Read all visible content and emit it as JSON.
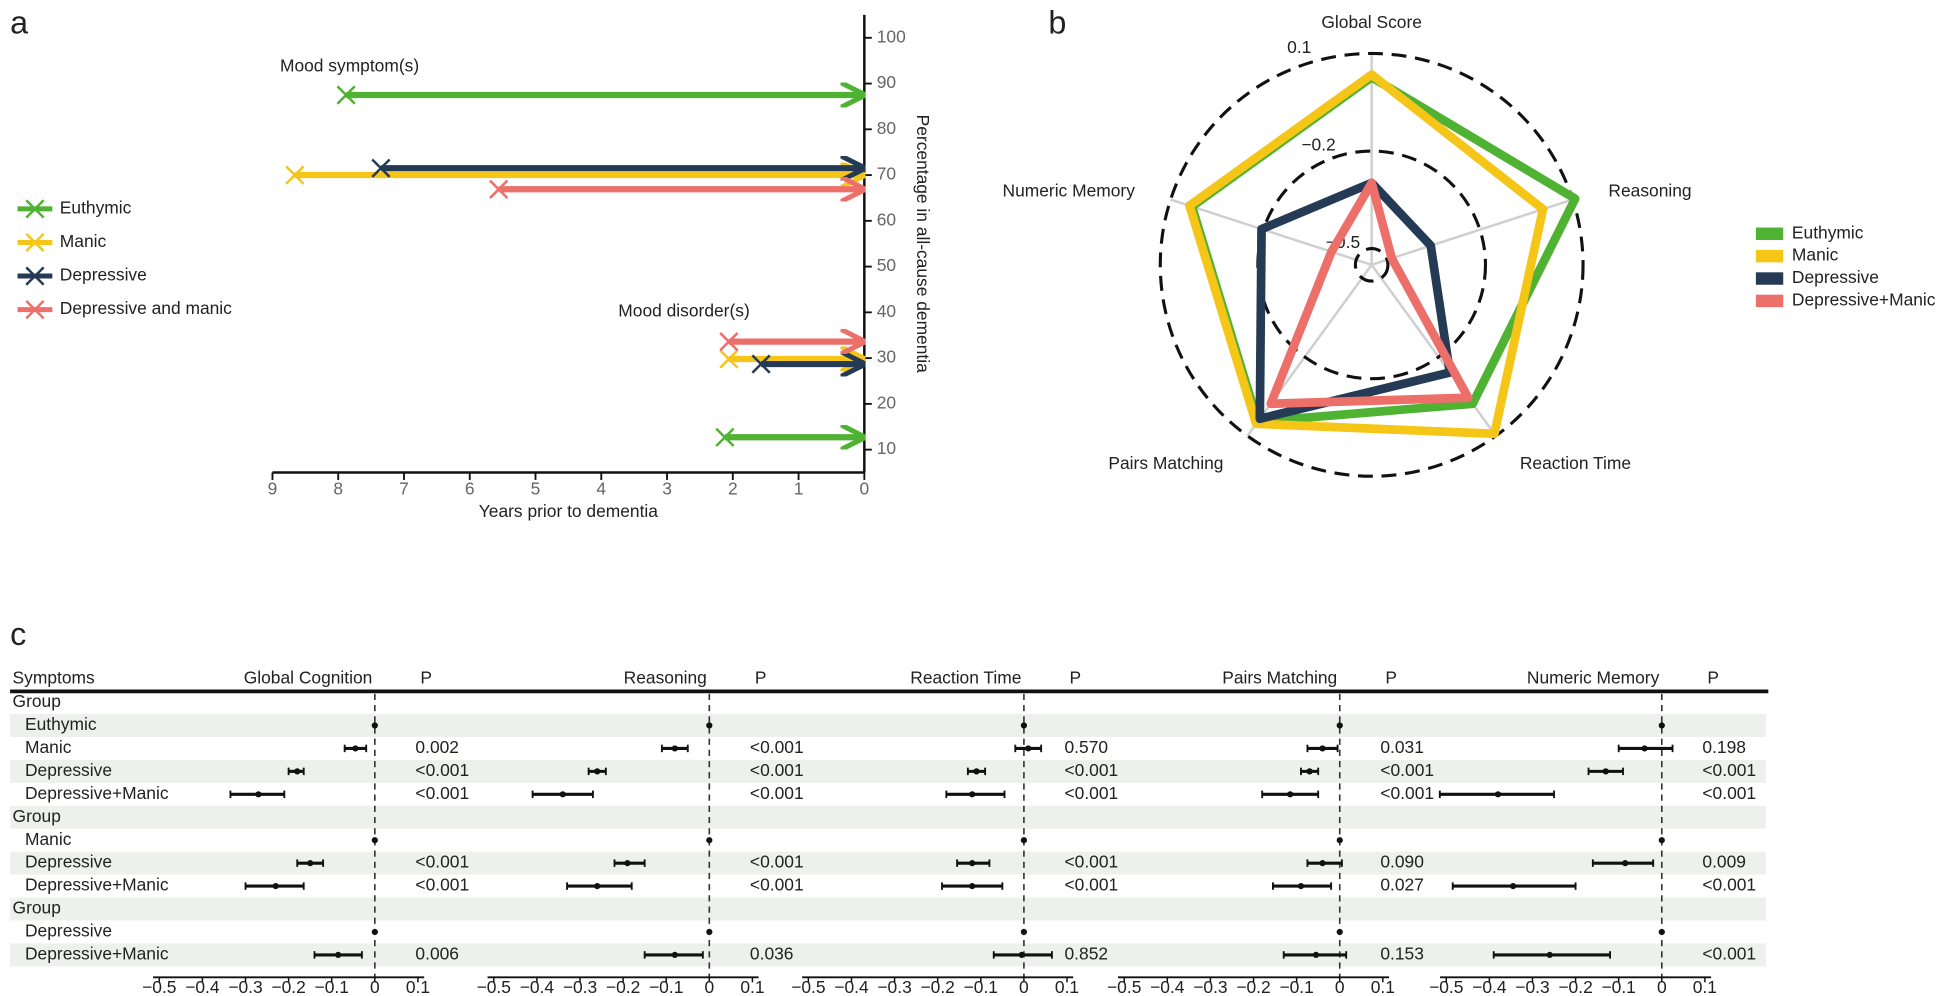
{
  "chart_data": [
    {
      "type": "range",
      "panel_label": "a",
      "annotations": [
        "Mood symptom(s)",
        "Mood disorder(s)"
      ],
      "xlabel": "Years prior to dementia",
      "ylabel": "Percentage in all-cause dementia",
      "xlim": [
        9,
        0
      ],
      "xticks": [
        9,
        8,
        7,
        6,
        5,
        4,
        3,
        2,
        1,
        0
      ],
      "ylim": [
        5,
        105
      ],
      "yticks": [
        10,
        20,
        30,
        40,
        50,
        60,
        70,
        80,
        90,
        100
      ],
      "series": [
        {
          "name": "Euthymic",
          "color": "#4fb232",
          "x": [
            7.88,
            2.12
          ],
          "values": [
            87.5,
            12.7
          ]
        },
        {
          "name": "Manic",
          "color": "#f5c518",
          "x": [
            8.66,
            2.06
          ],
          "values": [
            70,
            29.8
          ]
        },
        {
          "name": "Depressive",
          "color": "#253a54",
          "x": [
            7.35,
            1.57
          ],
          "values": [
            71.5,
            28.7
          ]
        },
        {
          "name": "Depressive and manic",
          "color": "#ec6f6a",
          "x": [
            5.56,
            2.06
          ],
          "values": [
            66.9,
            33.6
          ]
        }
      ]
    },
    {
      "type": "radar",
      "panel_label": "b",
      "categories": [
        "Global Score",
        "Reasoning",
        "Reaction Time",
        "Pairs Matching",
        "Numeric Memory"
      ],
      "rlim": [
        -0.55,
        0.1
      ],
      "rticks": [
        0.1,
        {
          "value": -0.2,
          "label": "−0.2"
        },
        {
          "value": -0.5,
          "label": "−0.5"
        }
      ],
      "series": [
        {
          "name": "Euthymic",
          "color": "#4fb232",
          "values": [
            0.027,
            0.108,
            -0.022,
            0.046,
            0.031
          ]
        },
        {
          "name": "Manic",
          "color": "#f5c518",
          "values": [
            0.035,
            0.004,
            0.092,
            0.054,
            0.039
          ]
        },
        {
          "name": "Depressive",
          "color": "#253a54",
          "values": [
            -0.298,
            -0.359,
            -0.141,
            0.035,
            -0.194
          ]
        },
        {
          "name": "Depressive+Manic",
          "color": "#ec6f6a",
          "values": [
            -0.298,
            -0.485,
            -0.045,
            -0.022,
            -0.42
          ]
        }
      ]
    },
    {
      "type": "forest",
      "panel_label": "c",
      "row_header": "Symptoms",
      "rows": [
        "Group",
        "Euthymic",
        "Manic",
        "Depressive",
        "Depressive+Manic",
        "Group",
        "Manic",
        "Depressive",
        "Depressive+Manic",
        "Group",
        "Depressive",
        "Depressive+Manic"
      ],
      "xlim": [
        -0.5,
        0.1
      ],
      "xticks": [
        {
          "value": -0.5,
          "label": "−0.5"
        },
        {
          "value": -0.4,
          "label": "−0.4"
        },
        {
          "value": -0.3,
          "label": "−0.3"
        },
        {
          "value": -0.2,
          "label": "−0.2"
        },
        {
          "value": -0.1,
          "label": "−0.1"
        },
        0,
        0.1
      ],
      "panels": [
        {
          "title": "Global Cognition",
          "p_title": "P",
          "estimates": [
            null,
            0,
            -0.045,
            -0.18,
            -0.27,
            null,
            0,
            -0.15,
            -0.23,
            null,
            0,
            -0.085
          ],
          "lower": [
            null,
            null,
            -0.07,
            -0.2,
            -0.335,
            null,
            null,
            -0.18,
            -0.3,
            null,
            null,
            -0.14
          ],
          "upper": [
            null,
            null,
            -0.02,
            -0.165,
            -0.21,
            null,
            null,
            -0.12,
            -0.165,
            null,
            null,
            -0.03
          ],
          "p": [
            null,
            null,
            "0.002",
            "<0.001",
            "<0.001",
            null,
            null,
            "<0.001",
            "<0.001",
            null,
            null,
            "0.006"
          ]
        },
        {
          "title": "Reasoning",
          "p_title": "P",
          "estimates": [
            null,
            0,
            -0.08,
            -0.26,
            -0.34,
            null,
            0,
            -0.19,
            -0.26,
            null,
            0,
            -0.08
          ],
          "lower": [
            null,
            null,
            -0.11,
            -0.28,
            -0.41,
            null,
            null,
            -0.22,
            -0.33,
            null,
            null,
            -0.15
          ],
          "upper": [
            null,
            null,
            -0.05,
            -0.24,
            -0.27,
            null,
            null,
            -0.15,
            -0.18,
            null,
            null,
            -0.015
          ],
          "p": [
            null,
            null,
            "<0.001",
            "<0.001",
            "<0.001",
            null,
            null,
            "<0.001",
            "<0.001",
            null,
            null,
            "0.036"
          ]
        },
        {
          "title": "Reaction Time",
          "p_title": "P",
          "estimates": [
            null,
            0,
            0.01,
            -0.11,
            -0.12,
            null,
            0,
            -0.12,
            -0.12,
            null,
            0,
            -0.005
          ],
          "lower": [
            null,
            null,
            -0.02,
            -0.13,
            -0.18,
            null,
            null,
            -0.155,
            -0.19,
            null,
            null,
            -0.07
          ],
          "upper": [
            null,
            null,
            0.04,
            -0.09,
            -0.045,
            null,
            null,
            -0.08,
            -0.05,
            null,
            null,
            0.065
          ],
          "p": [
            null,
            null,
            "0.570",
            "<0.001",
            "<0.001",
            null,
            null,
            "<0.001",
            "<0.001",
            null,
            null,
            "0.852"
          ]
        },
        {
          "title": "Pairs Matching",
          "p_title": "P",
          "estimates": [
            null,
            0,
            -0.04,
            -0.07,
            -0.115,
            null,
            0,
            -0.04,
            -0.09,
            null,
            0,
            -0.055
          ],
          "lower": [
            null,
            null,
            -0.075,
            -0.09,
            -0.18,
            null,
            null,
            -0.075,
            -0.155,
            null,
            null,
            -0.13
          ],
          "upper": [
            null,
            null,
            -0.005,
            -0.05,
            -0.05,
            null,
            null,
            0.005,
            -0.02,
            null,
            null,
            0.015
          ],
          "p": [
            null,
            null,
            "0.031",
            "<0.001",
            "<0.001",
            null,
            null,
            "0.090",
            "0.027",
            null,
            null,
            "0.153"
          ]
        },
        {
          "title": "Numeric Memory",
          "p_title": "P",
          "estimates": [
            null,
            0,
            -0.04,
            -0.13,
            -0.38,
            null,
            0,
            -0.085,
            -0.345,
            null,
            0,
            -0.26
          ],
          "lower": [
            null,
            null,
            -0.1,
            -0.17,
            -0.515,
            null,
            null,
            -0.16,
            -0.485,
            null,
            null,
            -0.39
          ],
          "upper": [
            null,
            null,
            0.025,
            -0.09,
            -0.25,
            null,
            null,
            -0.02,
            -0.2,
            null,
            null,
            -0.12
          ],
          "p": [
            null,
            null,
            "0.198",
            "<0.001",
            "<0.001",
            null,
            null,
            "0.009",
            "<0.001",
            null,
            null,
            "<0.001"
          ]
        }
      ]
    }
  ]
}
